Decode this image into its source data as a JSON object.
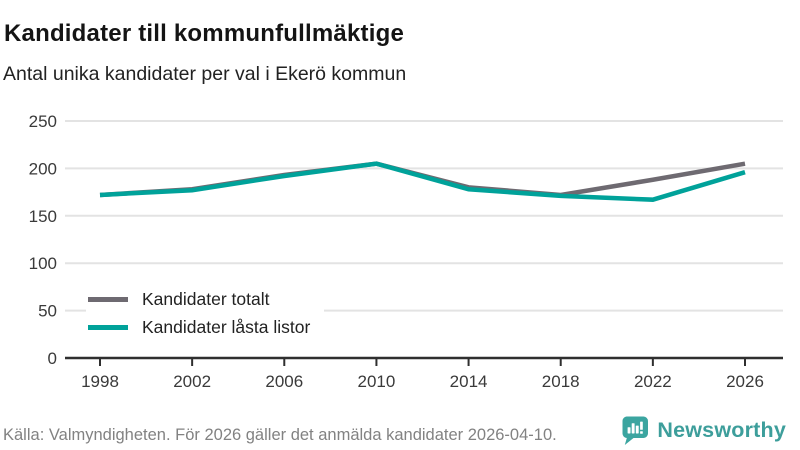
{
  "header": {
    "title": "Kandidater till kommunfullmäktige",
    "subtitle": "Antal unika kandidater per val i Ekerö kommun"
  },
  "chart_data": {
    "type": "line",
    "x": [
      1998,
      2002,
      2006,
      2010,
      2014,
      2018,
      2022,
      2026
    ],
    "series": [
      {
        "name": "Kandidater totalt",
        "color": "#6e6a71",
        "values": [
          172,
          178,
          193,
          205,
          180,
          172,
          188,
          205
        ]
      },
      {
        "name": "Kandidater låsta listor",
        "color": "#00a29a",
        "values": [
          172,
          177,
          192,
          205,
          178,
          171,
          167,
          196
        ]
      }
    ],
    "ylim": [
      0,
      250
    ],
    "yticks": [
      0,
      50,
      100,
      150,
      200,
      250
    ],
    "xlabel": "",
    "ylabel": "",
    "grid": true,
    "legend_position": "inside bottom-left"
  },
  "colors": {
    "grid": "#e3e3e3",
    "axis": "#2f2f2f",
    "tick_text": "#3a3a3a",
    "title": "#141414",
    "brand": "#3d9e9b",
    "brand_icon": "#3ba5a0"
  },
  "footer": {
    "source": "Källa: Valmyndigheten. För 2026 gäller det anmälda kandidater 2026-04-10.",
    "brand": "Newsworthy"
  },
  "icons": {
    "brand_icon": "newsworthy-speech-bubble-bar-chart-icon"
  }
}
